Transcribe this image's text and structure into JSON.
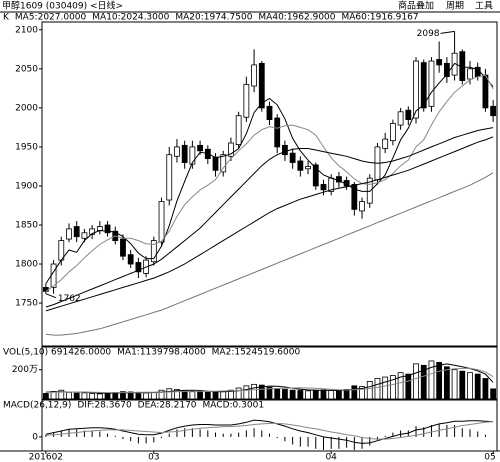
{
  "header": {
    "title": "甲醇1609 (030409) <日线>",
    "menu": [
      "商品叠加",
      "周期",
      "工具"
    ]
  },
  "chart_data": [
    {
      "type": "candlestick",
      "title": "K",
      "categories": [
        "201602",
        null,
        null,
        null,
        null,
        null,
        null,
        null,
        null,
        null,
        null,
        null,
        null,
        null,
        "03",
        null,
        null,
        null,
        null,
        null,
        null,
        null,
        null,
        null,
        null,
        null,
        null,
        null,
        null,
        null,
        null,
        null,
        null,
        null,
        null,
        null,
        null,
        "04",
        null,
        null,
        null,
        null,
        null,
        null,
        null,
        null,
        null,
        null,
        null,
        null,
        null,
        null,
        null,
        null,
        null,
        null,
        null,
        null,
        "05"
      ],
      "open": [
        1770,
        1770,
        1805,
        1832,
        1848,
        1833,
        1838,
        1843,
        1850,
        1842,
        1832,
        1812,
        1802,
        1788,
        1803,
        1828,
        1882,
        1938,
        1952,
        1928,
        1952,
        1947,
        1937,
        1918,
        1938,
        1953,
        1988,
        2028,
        2057,
        2002,
        1987,
        1952,
        1942,
        1932,
        1922,
        1927,
        1902,
        1893,
        1912,
        1907,
        1902,
        1868,
        1878,
        1908,
        1948,
        1958,
        1978,
        1997,
        1987,
        2058,
        2002,
        2062,
        2057,
        2042,
        2072,
        2037,
        2052,
        2042,
        2002
      ],
      "high": [
        1775,
        1805,
        1835,
        1852,
        1855,
        1845,
        1850,
        1855,
        1855,
        1848,
        1838,
        1818,
        1808,
        1810,
        1835,
        1885,
        1950,
        1960,
        1958,
        1958,
        1958,
        1952,
        1942,
        1945,
        1962,
        1995,
        2040,
        2075,
        2060,
        2008,
        1992,
        1958,
        1948,
        1938,
        1932,
        1930,
        1908,
        1915,
        1918,
        1912,
        1905,
        1885,
        1915,
        1955,
        1968,
        1985,
        2000,
        2002,
        2065,
        2062,
        2065,
        2085,
        2065,
        2098,
        2075,
        2060,
        2058,
        2050,
        2010
      ],
      "low": [
        1762,
        1762,
        1798,
        1828,
        1828,
        1828,
        1832,
        1838,
        1835,
        1825,
        1805,
        1795,
        1782,
        1783,
        1798,
        1822,
        1875,
        1930,
        1922,
        1922,
        1940,
        1928,
        1912,
        1912,
        1932,
        1948,
        1982,
        2020,
        1995,
        1978,
        1942,
        1932,
        1922,
        1912,
        1915,
        1895,
        1888,
        1888,
        1898,
        1895,
        1862,
        1858,
        1872,
        1902,
        1942,
        1952,
        1972,
        1978,
        1980,
        1995,
        1995,
        2045,
        2032,
        2035,
        2030,
        2030,
        2035,
        1995,
        1982
      ],
      "close": [
        1765,
        1800,
        1830,
        1845,
        1835,
        1840,
        1845,
        1848,
        1840,
        1830,
        1810,
        1800,
        1790,
        1805,
        1830,
        1880,
        1940,
        1950,
        1930,
        1950,
        1945,
        1935,
        1920,
        1940,
        1955,
        1990,
        2030,
        2055,
        2000,
        1985,
        1950,
        1940,
        1930,
        1920,
        1925,
        1900,
        1895,
        1910,
        1905,
        1900,
        1870,
        1880,
        1910,
        1950,
        1960,
        1980,
        1995,
        1985,
        2060,
        2000,
        2060,
        2055,
        2040,
        2070,
        2035,
        2050,
        2040,
        2000,
        1990
      ],
      "color": "#000000",
      "series": [
        {
          "name": "MA5:2027.0000",
          "color": "#000000",
          "values": [
            1775,
            1790,
            1805,
            1818,
            1815,
            1830,
            1839,
            1843,
            1842,
            1841,
            1835,
            1826,
            1814,
            1807,
            1807,
            1823,
            1849,
            1881,
            1906,
            1930,
            1943,
            1942,
            1936,
            1938,
            1941,
            1948,
            1967,
            1994,
            2006,
            2012,
            2004,
            1986,
            1961,
            1945,
            1933,
            1923,
            1914,
            1910,
            1907,
            1902,
            1896,
            1893,
            1893,
            1903,
            1914,
            1936,
            1959,
            1974,
            1996,
            2004,
            2020,
            2032,
            2043,
            2057,
            2052,
            2052,
            2049,
            2039,
            2027
          ]
        },
        {
          "name": "MA10:2024.3000",
          "color": "#888888",
          "values": [
            1765,
            1772,
            1780,
            1790,
            1798,
            1808,
            1817,
            1825,
            1831,
            1836,
            1833,
            1833,
            1830,
            1826,
            1825,
            1829,
            1842,
            1861,
            1876,
            1886,
            1895,
            1901,
            1908,
            1923,
            1935,
            1945,
            1954,
            1965,
            1972,
            1976,
            1974,
            1977,
            1978,
            1975,
            1972,
            1965,
            1950,
            1936,
            1926,
            1918,
            1909,
            1903,
            1902,
            1904,
            1908,
            1916,
            1926,
            1933,
            1950,
            1959,
            1978,
            1995,
            2008,
            2020,
            2028,
            2036,
            2040,
            2042,
            2024.3
          ]
        },
        {
          "name": "MA20:1974.7500",
          "color": "#000000",
          "values": [
            1745,
            1748,
            1752,
            1756,
            1760,
            1764,
            1768,
            1772,
            1776,
            1780,
            1784,
            1788,
            1792,
            1796,
            1800,
            1806,
            1814,
            1822,
            1830,
            1838,
            1846,
            1856,
            1866,
            1876,
            1886,
            1896,
            1906,
            1916,
            1926,
            1934,
            1940,
            1944,
            1947,
            1948,
            1948,
            1946,
            1944,
            1942,
            1940,
            1938,
            1935,
            1932,
            1930,
            1929,
            1930,
            1932,
            1935,
            1938,
            1942,
            1946,
            1950,
            1954,
            1958,
            1962,
            1965,
            1968,
            1971,
            1973,
            1974.75
          ]
        },
        {
          "name": "MA40:1962.9000",
          "color": "#000000",
          "values": [
            1740,
            1743,
            1746,
            1749,
            1752,
            1755,
            1758,
            1761,
            1764,
            1767,
            1770,
            1773,
            1776,
            1779,
            1782,
            1786,
            1790,
            1795,
            1800,
            1806,
            1812,
            1818,
            1824,
            1830,
            1836,
            1842,
            1848,
            1854,
            1860,
            1866,
            1871,
            1875,
            1879,
            1883,
            1886,
            1889,
            1892,
            1895,
            1897,
            1899,
            1901,
            1903,
            1905,
            1908,
            1911,
            1914,
            1917,
            1920,
            1924,
            1928,
            1932,
            1936,
            1940,
            1944,
            1948,
            1952,
            1956,
            1959,
            1962.9
          ]
        },
        {
          "name": "MA60:1916.9167",
          "color": "#777777",
          "values": [
            1710,
            1709,
            1709,
            1710,
            1711,
            1713,
            1715,
            1717,
            1720,
            1723,
            1726,
            1729,
            1732,
            1735,
            1738,
            1741,
            1745,
            1749,
            1753,
            1757,
            1761,
            1765,
            1769,
            1773,
            1777,
            1781,
            1785,
            1789,
            1793,
            1797,
            1801,
            1805,
            1809,
            1813,
            1817,
            1821,
            1825,
            1829,
            1833,
            1837,
            1841,
            1845,
            1849,
            1853,
            1857,
            1861,
            1865,
            1869,
            1873,
            1877,
            1881,
            1885,
            1889,
            1893,
            1897,
            1901,
            1906,
            1911,
            1916.9167
          ]
        }
      ],
      "annotations": [
        {
          "value": 2098,
          "label": "2098"
        },
        {
          "value": 1762,
          "label": "1762"
        }
      ],
      "ylim": [
        1695,
        2110
      ],
      "yticks": [
        1750,
        1800,
        1850,
        1900,
        1950,
        2000,
        2050,
        2100
      ]
    },
    {
      "type": "bar",
      "title": "VOL(5,10) 691426.0000",
      "values": [
        380000,
        520000,
        600000,
        450000,
        400000,
        420000,
        380000,
        350000,
        400000,
        450000,
        500000,
        480000,
        420000,
        400000,
        450000,
        600000,
        700000,
        650000,
        550000,
        500000,
        480000,
        460000,
        520000,
        550000,
        600000,
        750000,
        900000,
        1000000,
        950000,
        800000,
        700000,
        650000,
        600000,
        580000,
        560000,
        600000,
        620000,
        580000,
        600000,
        650000,
        900000,
        850000,
        1200000,
        1400000,
        1500000,
        1600000,
        1800000,
        1700000,
        2400000,
        2300000,
        2600000,
        2500000,
        2200000,
        2000000,
        1900000,
        1800000,
        1700000,
        1400000,
        691426
      ],
      "color": "#000000",
      "series": [
        {
          "name": "MA1:1139798.4000",
          "color": "#000000",
          "values": [
            470000,
            490000,
            500000,
            480000,
            470000,
            470000,
            440000,
            400000,
            400000,
            400000,
            420000,
            440000,
            450000,
            450000,
            450000,
            470000,
            510000,
            560000,
            590000,
            600000,
            580000,
            530000,
            500000,
            500000,
            520000,
            570000,
            640000,
            760000,
            840000,
            880000,
            870000,
            820000,
            740000,
            670000,
            620000,
            600000,
            590000,
            590000,
            590000,
            610000,
            670000,
            720000,
            840000,
            1000000,
            1160000,
            1310000,
            1500000,
            1600000,
            1780000,
            1960000,
            2160000,
            2300000,
            2400000,
            2300000,
            2200000,
            2080000,
            1920000,
            1700000,
            1139798.4
          ]
        },
        {
          "name": "MA2:1524519.6000",
          "color": "#888888",
          "values": [
            450000,
            460000,
            470000,
            480000,
            480000,
            470000,
            460000,
            450000,
            440000,
            435000,
            440000,
            440000,
            430000,
            425000,
            430000,
            445000,
            475000,
            500000,
            520000,
            525000,
            525000,
            520000,
            530000,
            545000,
            560000,
            575000,
            590000,
            630000,
            670000,
            710000,
            720000,
            730000,
            750000,
            755000,
            750000,
            735000,
            705000,
            665000,
            630000,
            615000,
            635000,
            655000,
            715000,
            795000,
            885000,
            990000,
            1110000,
            1220000,
            1400000,
            1560000,
            1730000,
            1900000,
            2000000,
            2060000,
            2080000,
            2100000,
            2000000,
            1850000,
            1524519.6
          ]
        }
      ],
      "ylim": [
        0,
        2800000
      ],
      "yticks": [
        {
          "value": 2000000,
          "label": "200万"
        }
      ]
    },
    {
      "type": "macd",
      "title": "MACD(26,12,9)",
      "values": [
        4,
        8,
        12,
        14,
        14,
        12,
        12,
        10,
        6,
        2,
        -4,
        -8,
        -12,
        -12,
        -10,
        -2,
        6,
        14,
        16,
        16,
        14,
        12,
        8,
        6,
        6,
        8,
        12,
        16,
        12,
        6,
        -2,
        -8,
        -14,
        -18,
        -18,
        -22,
        -24,
        -22,
        -22,
        -20,
        -24,
        -22,
        -16,
        -6,
        2,
        8,
        12,
        12,
        20,
        18,
        22,
        24,
        22,
        22,
        16,
        14,
        10,
        4,
        0.3001
      ],
      "color": "#000000",
      "series": [
        {
          "name": "DIF:28.3670",
          "color": "#000000",
          "values": [
            5,
            8,
            11,
            14,
            15,
            16,
            17,
            17,
            16,
            14,
            11,
            8,
            5,
            4,
            4,
            7,
            12,
            17,
            20,
            22,
            23,
            23,
            22,
            22,
            22,
            24,
            27,
            31,
            30,
            28,
            24,
            20,
            15,
            11,
            8,
            4,
            0,
            -2,
            -4,
            -6,
            -10,
            -12,
            -11,
            -7,
            -3,
            1,
            5,
            7,
            13,
            15,
            20,
            24,
            26,
            29,
            29,
            30,
            30,
            29,
            28.367
          ]
        },
        {
          "name": "DEA:28.2170",
          "color": "#888888",
          "values": [
            3,
            4,
            5,
            7,
            8,
            10,
            11,
            12,
            13,
            13,
            13,
            12,
            11,
            10,
            9,
            8,
            9,
            10,
            12,
            14,
            16,
            17,
            18,
            19,
            19,
            20,
            21,
            23,
            24,
            25,
            25,
            24,
            22,
            20,
            17,
            15,
            12,
            9,
            7,
            4,
            2,
            -1,
            -3,
            -4,
            -4,
            -3,
            -1,
            1,
            3,
            6,
            9,
            12,
            15,
            18,
            21,
            23,
            25,
            27,
            28.217
          ]
        },
        {
          "name": "MACD:0.3001",
          "color": "#000000",
          "values": null
        }
      ],
      "ylim": [
        -26,
        46
      ],
      "yticks": [
        0
      ]
    }
  ]
}
